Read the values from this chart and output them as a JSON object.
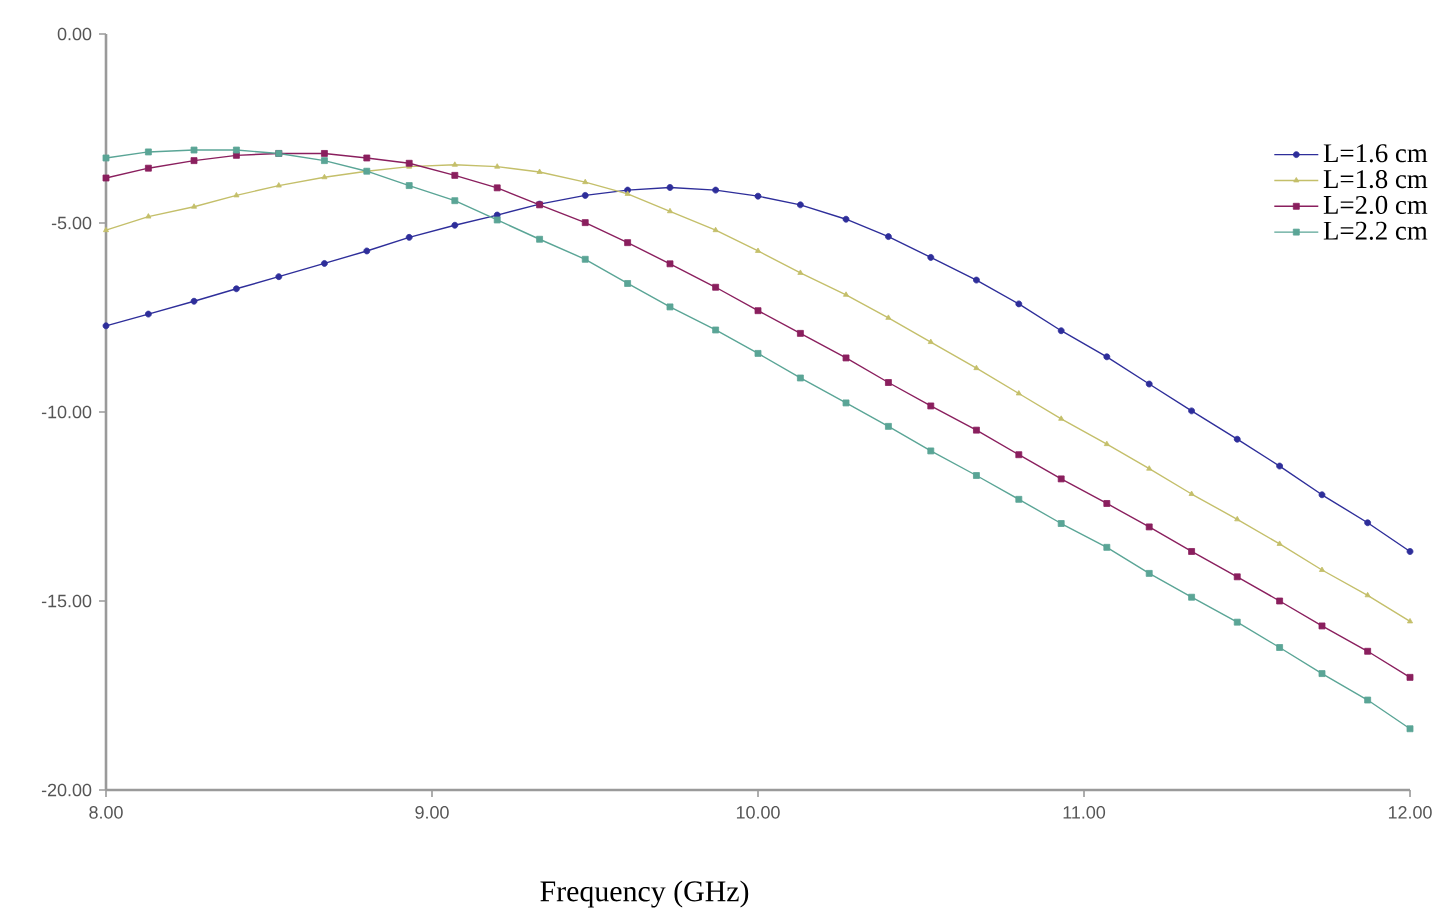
{
  "chart_data": {
    "type": "line",
    "xlabel": "Frequency (GHz)",
    "x": [
      8,
      8.13,
      8.27,
      8.4,
      8.53,
      8.67,
      8.8,
      8.93,
      9.07,
      9.2,
      9.33,
      9.47,
      9.6,
      9.73,
      9.87,
      10,
      10.13,
      10.27,
      10.4,
      10.53,
      10.67,
      10.8,
      10.93,
      11.07,
      11.2,
      11.33,
      11.47,
      11.6,
      11.73,
      11.87,
      12
    ],
    "xlim": [
      8,
      12
    ],
    "ylim": [
      -20,
      0
    ],
    "xticks": [
      {
        "value": 8,
        "label": "8.00"
      },
      {
        "value": 9,
        "label": "9.00"
      },
      {
        "value": 10,
        "label": "10.00"
      },
      {
        "value": 11,
        "label": "11.00"
      },
      {
        "value": 12,
        "label": "12.00"
      }
    ],
    "yticks": [
      {
        "value": -20,
        "label": "-20.00"
      },
      {
        "value": -15,
        "label": "-15.00"
      },
      {
        "value": -10,
        "label": "-10.00"
      },
      {
        "value": -5,
        "label": "-5.00"
      },
      {
        "value": 0,
        "label": "0.00"
      }
    ],
    "grid": false,
    "legend": "top right",
    "line_style": "solid",
    "series": [
      {
        "name": "L=1.6 cm",
        "color": "#2e2e9a",
        "marker": "circle",
        "values": [
          -7.72,
          -7.41,
          -7.07,
          -6.74,
          -6.42,
          -6.07,
          -5.74,
          -5.38,
          -5.06,
          -4.79,
          -4.5,
          -4.27,
          -4.13,
          -4.06,
          -4.13,
          -4.29,
          -4.52,
          -4.9,
          -5.36,
          -5.91,
          -6.51,
          -7.14,
          -7.85,
          -8.54,
          -9.26,
          -9.97,
          -10.72,
          -11.43,
          -12.19,
          -12.93,
          -13.69
        ]
      },
      {
        "name": "L=1.8 cm",
        "color": "#c4bf6a",
        "marker": "triangle",
        "values": [
          -5.19,
          -4.83,
          -4.57,
          -4.27,
          -4.01,
          -3.79,
          -3.63,
          -3.51,
          -3.46,
          -3.51,
          -3.65,
          -3.92,
          -4.23,
          -4.69,
          -5.19,
          -5.74,
          -6.32,
          -6.9,
          -7.51,
          -8.15,
          -8.84,
          -9.51,
          -10.18,
          -10.85,
          -11.5,
          -12.17,
          -12.84,
          -13.49,
          -14.18,
          -14.85,
          -15.54
        ]
      },
      {
        "name": "L=2.0 cm",
        "color": "#8a1f5e",
        "marker": "square",
        "values": [
          -3.81,
          -3.55,
          -3.35,
          -3.21,
          -3.16,
          -3.16,
          -3.28,
          -3.42,
          -3.74,
          -4.07,
          -4.52,
          -4.99,
          -5.52,
          -6.08,
          -6.7,
          -7.32,
          -7.92,
          -8.57,
          -9.22,
          -9.84,
          -10.48,
          -11.13,
          -11.77,
          -12.42,
          -13.04,
          -13.69,
          -14.36,
          -15,
          -15.66,
          -16.33,
          -17.02
        ]
      },
      {
        "name": "L=2.2 cm",
        "color": "#5aa596",
        "marker": "square",
        "values": [
          -3.28,
          -3.12,
          -3.07,
          -3.07,
          -3.16,
          -3.35,
          -3.63,
          -4.01,
          -4.41,
          -4.92,
          -5.43,
          -5.96,
          -6.6,
          -7.22,
          -7.83,
          -8.45,
          -9.1,
          -9.76,
          -10.38,
          -11.03,
          -11.68,
          -12.31,
          -12.95,
          -13.58,
          -14.27,
          -14.9,
          -15.56,
          -16.23,
          -16.92,
          -17.62,
          -18.38
        ]
      }
    ]
  }
}
